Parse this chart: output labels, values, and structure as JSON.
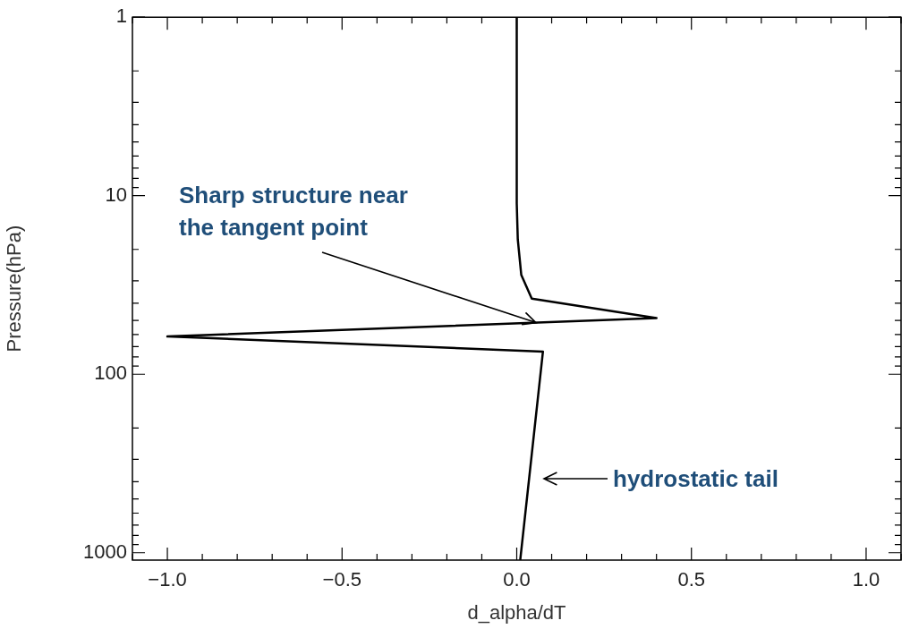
{
  "chart_data": {
    "type": "line",
    "xlabel": "d_alpha/dT",
    "ylabel": "Pressure(hPa)",
    "log": "y",
    "grid": false,
    "legend": false,
    "marker": "none",
    "line_style": "solid",
    "xlim": [
      -1.1,
      1.1
    ],
    "ylim": [
      1100,
      1
    ],
    "xticks": [
      {
        "value": -1.1,
        "label": null
      },
      {
        "value": -1.0,
        "label": "−1.0"
      },
      {
        "value": -0.9,
        "label": null
      },
      {
        "value": -0.8,
        "label": null
      },
      {
        "value": -0.7,
        "label": null
      },
      {
        "value": -0.6,
        "label": null
      },
      {
        "value": -0.5,
        "label": "−0.5"
      },
      {
        "value": -0.4,
        "label": null
      },
      {
        "value": -0.3,
        "label": null
      },
      {
        "value": -0.2,
        "label": null
      },
      {
        "value": -0.1,
        "label": null
      },
      {
        "value": 0,
        "label": "0.0"
      },
      {
        "value": 0.1,
        "label": null
      },
      {
        "value": 0.2,
        "label": null
      },
      {
        "value": 0.3,
        "label": null
      },
      {
        "value": 0.4,
        "label": null
      },
      0.5,
      {
        "value": 0.6,
        "label": null
      },
      {
        "value": 0.7,
        "label": null
      },
      {
        "value": 0.8,
        "label": null
      },
      {
        "value": 0.9,
        "label": null
      },
      {
        "value": 1.0,
        "label": "1.0"
      },
      {
        "value": 1.1,
        "label": null
      }
    ],
    "yticks": [
      1,
      {
        "value": 2,
        "label": null
      },
      {
        "value": 3,
        "label": null
      },
      {
        "value": 4,
        "label": null
      },
      {
        "value": 5,
        "label": null
      },
      {
        "value": 6,
        "label": null
      },
      {
        "value": 7,
        "label": null
      },
      {
        "value": 8,
        "label": null
      },
      {
        "value": 9,
        "label": null
      },
      10,
      {
        "value": 20,
        "label": null
      },
      {
        "value": 30,
        "label": null
      },
      {
        "value": 40,
        "label": null
      },
      {
        "value": 50,
        "label": null
      },
      {
        "value": 60,
        "label": null
      },
      {
        "value": 70,
        "label": null
      },
      {
        "value": 80,
        "label": null
      },
      {
        "value": 90,
        "label": null
      },
      100,
      {
        "value": 200,
        "label": null
      },
      {
        "value": 300,
        "label": null
      },
      {
        "value": 400,
        "label": null
      },
      {
        "value": 500,
        "label": null
      },
      {
        "value": 600,
        "label": null
      },
      {
        "value": 700,
        "label": null
      },
      {
        "value": 800,
        "label": null
      },
      {
        "value": 900,
        "label": null
      },
      1000
    ],
    "series": [
      {
        "color": "#000000",
        "x": [
          0.0,
          0.0,
          0.003,
          0.013,
          0.043,
          0.4,
          -1.0,
          0.075,
          0.01
        ],
        "values": [
          1,
          11,
          17.6,
          27.8,
          37.7,
          48.5,
          61.5,
          74.7,
          1100
        ]
      }
    ],
    "annotations": [
      {
        "text": "Sharp structure near\nthe tangent point",
        "x": 0.055,
        "y": 51.4
      },
      "hydrostatic tail"
    ]
  }
}
